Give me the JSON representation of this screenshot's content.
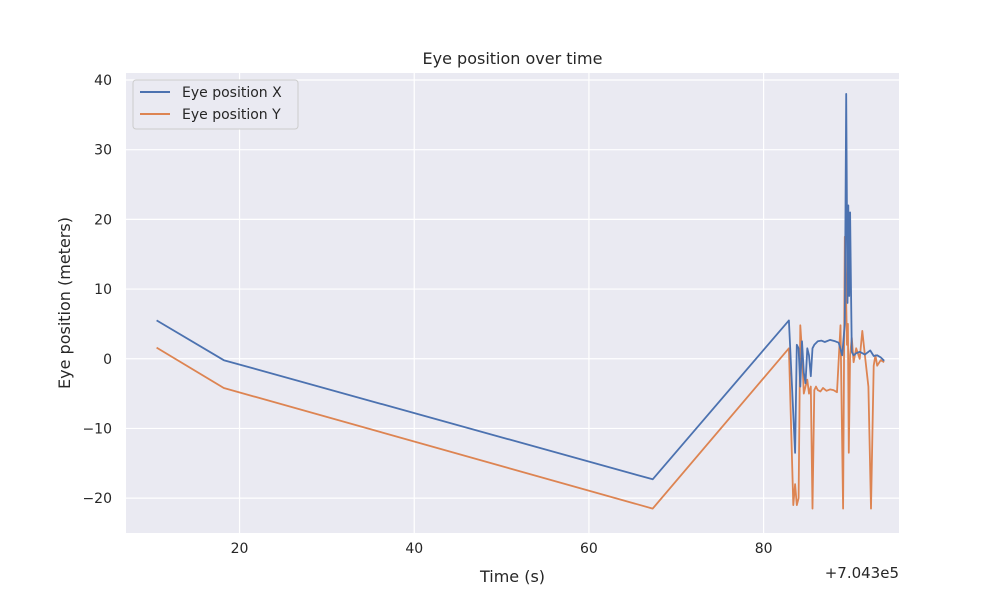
{
  "chart_data": {
    "type": "line",
    "title": "Eye position over time",
    "xlabel": "Time (s)",
    "ylabel": "Eye position (meters)",
    "x_offset_label": "+7.043e5",
    "xlim": [
      7.0,
      95.5
    ],
    "ylim": [
      -25,
      41
    ],
    "xticks": [
      20,
      40,
      60,
      80
    ],
    "yticks": [
      -20,
      -10,
      0,
      10,
      20,
      30,
      40
    ],
    "grid": true,
    "legend_position": "top-left",
    "series": [
      {
        "name": "Eye position X",
        "color": "#4c72b0",
        "x": [
          10.5,
          18.2,
          67.3,
          82.9,
          83.6,
          83.8,
          84.0,
          84.2,
          84.4,
          84.6,
          84.8,
          85.0,
          85.2,
          85.4,
          85.6,
          85.8,
          86.2,
          86.6,
          87.0,
          87.6,
          88.2,
          88.6,
          89.0,
          89.3,
          89.45,
          89.55,
          89.6,
          89.7,
          89.8,
          89.9,
          90.0,
          90.1,
          90.3,
          90.6,
          91.0,
          91.6,
          92.2,
          92.6,
          93.0,
          93.4,
          93.8
        ],
        "y": [
          5.5,
          -0.2,
          -17.3,
          5.5,
          -13.5,
          2.0,
          1.5,
          -4.0,
          2.5,
          -2.0,
          -3.5,
          1.5,
          0.5,
          -2.5,
          1.5,
          2.0,
          2.5,
          2.6,
          2.4,
          2.7,
          2.5,
          2.3,
          0.5,
          5.0,
          38.0,
          20.0,
          8.0,
          22.0,
          9.0,
          21.0,
          10.0,
          1.0,
          0.5,
          0.8,
          1.0,
          0.6,
          1.2,
          0.4,
          0.5,
          0.2,
          -0.3
        ]
      },
      {
        "name": "Eye position Y",
        "color": "#dd8452",
        "x": [
          10.5,
          18.2,
          67.3,
          82.9,
          83.4,
          83.6,
          83.8,
          84.0,
          84.2,
          84.4,
          84.6,
          84.8,
          85.0,
          85.2,
          85.4,
          85.6,
          85.8,
          86.0,
          86.2,
          86.5,
          86.8,
          87.2,
          87.6,
          88.0,
          88.4,
          88.8,
          89.1,
          89.3,
          89.45,
          89.55,
          89.65,
          89.75,
          89.9,
          90.1,
          90.3,
          90.6,
          91.0,
          91.3,
          91.6,
          92.0,
          92.3,
          92.6,
          92.8,
          93.0,
          93.4,
          93.8
        ],
        "y": [
          1.6,
          -4.2,
          -21.5,
          1.5,
          -21.0,
          -18.0,
          -21.0,
          -20.0,
          4.8,
          1.0,
          -5.0,
          -4.0,
          -3.0,
          -5.0,
          -4.0,
          -21.5,
          -4.5,
          -4.0,
          -4.5,
          -4.7,
          -4.2,
          -4.6,
          -4.4,
          -4.5,
          -4.8,
          4.8,
          -21.5,
          17.5,
          8.0,
          2.0,
          5.0,
          -13.5,
          0.5,
          3.0,
          -0.5,
          1.5,
          0.0,
          4.0,
          0.5,
          -4.0,
          -21.5,
          -1.0,
          0.5,
          -1.0,
          -0.2,
          -0.5
        ]
      }
    ]
  }
}
